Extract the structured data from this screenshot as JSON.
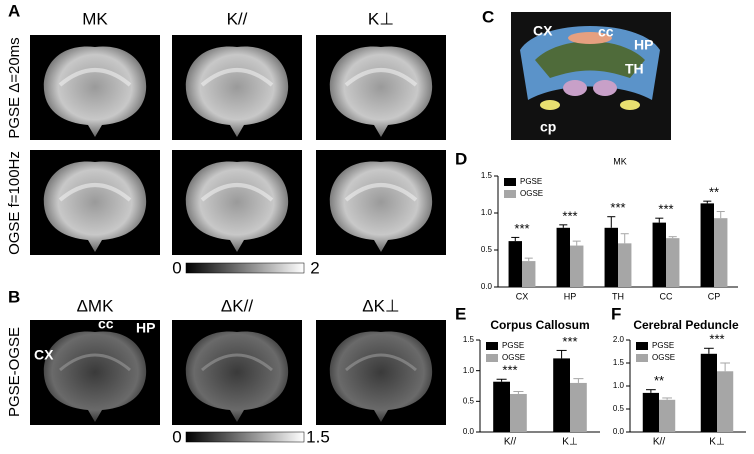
{
  "figure": {
    "panels": [
      "A",
      "B",
      "C",
      "D",
      "E",
      "F"
    ],
    "headers_a": [
      "MK",
      "K//",
      "K⊥"
    ],
    "headers_b": [
      "ΔMK",
      "ΔK//",
      "ΔK⊥"
    ],
    "row_labels": [
      "PGSE Δ=20ms",
      "OGSE f=100Hz",
      "PGSE-OGSE"
    ],
    "colorbars": [
      [
        0,
        2
      ],
      [
        0,
        1.5
      ]
    ],
    "map_labels_b": [
      "CX",
      "cc",
      "HP"
    ],
    "map_labels_c": [
      "CX",
      "cc",
      "HP",
      "TH",
      "cp"
    ]
  },
  "chart_data": [
    {
      "type": "bar",
      "title": "MK",
      "categories": [
        "CX",
        "HP",
        "TH",
        "CC",
        "CP"
      ],
      "series": [
        {
          "name": "PGSE",
          "color": "#000000",
          "values": [
            0.62,
            0.8,
            0.8,
            0.87,
            1.13
          ],
          "errors": [
            0.05,
            0.04,
            0.15,
            0.06,
            0.03
          ]
        },
        {
          "name": "OGSE",
          "color": "#a6a6a6",
          "values": [
            0.35,
            0.56,
            0.59,
            0.66,
            0.93
          ],
          "errors": [
            0.04,
            0.06,
            0.13,
            0.02,
            0.09
          ]
        }
      ],
      "annotations": [
        "***",
        "***",
        "***",
        "***",
        "**"
      ],
      "ylim": [
        0,
        1.5
      ],
      "yticks": [
        {
          "value": 0,
          "label": "0.0"
        },
        0.5,
        {
          "value": 1,
          "label": "1.0"
        },
        1.5
      ],
      "legend": "top-left"
    },
    {
      "type": "bar",
      "title": "Corpus Callosum",
      "categories": [
        "K//",
        "K⊥"
      ],
      "series": [
        {
          "name": "PGSE",
          "color": "#000000",
          "values": [
            0.82,
            1.2
          ],
          "errors": [
            0.04,
            0.13
          ]
        },
        {
          "name": "OGSE",
          "color": "#a6a6a6",
          "values": [
            0.62,
            0.8
          ],
          "errors": [
            0.04,
            0.07
          ]
        }
      ],
      "annotations": [
        "***",
        "***"
      ],
      "ylim": [
        0,
        1.5
      ],
      "yticks": [
        {
          "value": 0,
          "label": "0.0"
        },
        0.5,
        {
          "value": 1,
          "label": "1.0"
        },
        1.5
      ],
      "legend": "top-left"
    },
    {
      "type": "bar",
      "title": "Cerebral Peduncle",
      "categories": [
        "K//",
        "K⊥"
      ],
      "series": [
        {
          "name": "PGSE",
          "color": "#000000",
          "values": [
            0.85,
            1.7
          ],
          "errors": [
            0.07,
            0.12
          ]
        },
        {
          "name": "OGSE",
          "color": "#a6a6a6",
          "values": [
            0.7,
            1.32
          ],
          "errors": [
            0.04,
            0.18
          ]
        }
      ],
      "annotations": [
        "**",
        "***"
      ],
      "ylim": [
        0,
        2
      ],
      "yticks": [
        {
          "value": 0,
          "label": "0.0"
        },
        0.5,
        {
          "value": 1,
          "label": "1.0"
        },
        1.5,
        {
          "value": 2,
          "label": "2.0"
        }
      ],
      "legend": "top-left"
    }
  ]
}
